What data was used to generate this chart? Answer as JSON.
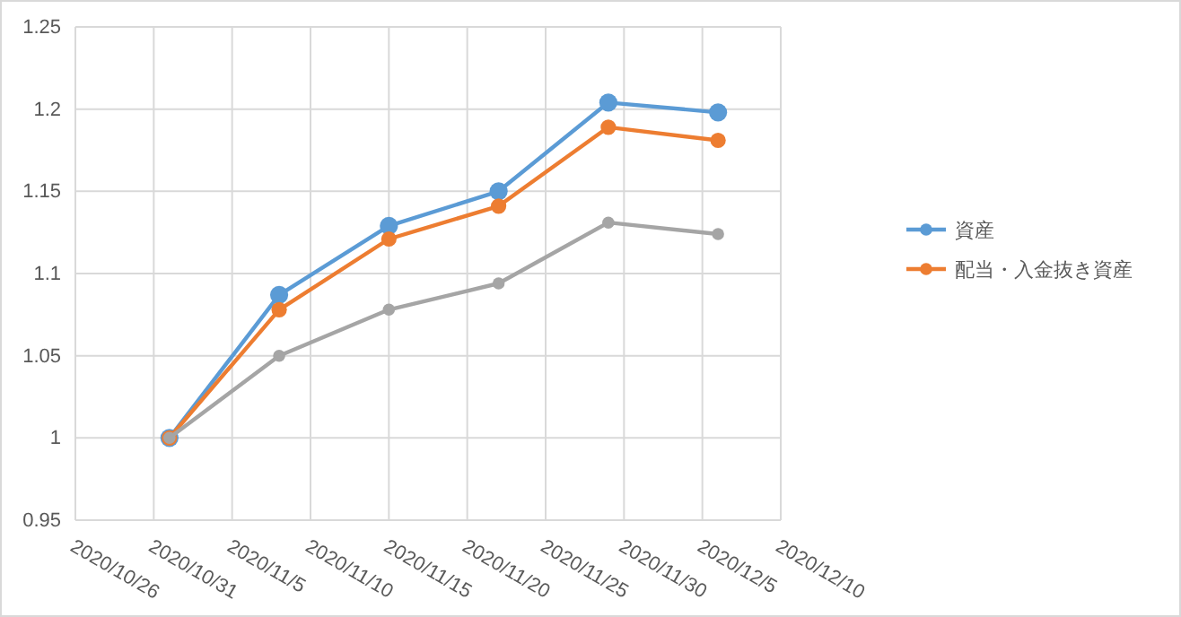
{
  "chart_data": {
    "type": "line",
    "x": [
      "2020-11-01",
      "2020-11-08",
      "2020-11-15",
      "2020-11-22",
      "2020-11-29",
      "2020-12-06"
    ],
    "series": [
      {
        "name": "資産",
        "color": "#5b9bd5",
        "values": [
          1,
          1.087,
          1.129,
          1.15,
          1.204,
          1.198
        ]
      },
      {
        "name": "配当・入金抜き資産",
        "color": "#ed7d31",
        "values": [
          1,
          1.078,
          1.121,
          1.141,
          1.189,
          1.181
        ]
      },
      {
        "color": "#a5a5a5",
        "values": [
          1,
          1.05,
          1.078,
          1.094,
          1.131,
          1.124
        ]
      }
    ],
    "xlim": [
      "2020-10-26",
      "2020-12-10"
    ],
    "xticks": [
      {
        "value": "2020-10-26",
        "label": "2020/10/26"
      },
      {
        "value": "2020-10-31",
        "label": "2020/10/31"
      },
      {
        "value": "2020-11-05",
        "label": "2020/11/5"
      },
      {
        "value": "2020-11-10",
        "label": "2020/11/10"
      },
      {
        "value": "2020-11-15",
        "label": "2020/11/15"
      },
      {
        "value": "2020-11-20",
        "label": "2020/11/20"
      },
      {
        "value": "2020-11-25",
        "label": "2020/11/25"
      },
      {
        "value": "2020-11-30",
        "label": "2020/11/30"
      },
      {
        "value": "2020-12-05",
        "label": "2020/12/5"
      },
      {
        "value": "2020-12-10",
        "label": "2020/12/10"
      }
    ],
    "ylim": [
      0.95,
      1.25
    ],
    "yticks": [
      0.95,
      1,
      1.05,
      1.1,
      1.15,
      1.2,
      1.25
    ],
    "grid": true,
    "legend": "right",
    "marker": "circle",
    "line_style": "solid"
  }
}
